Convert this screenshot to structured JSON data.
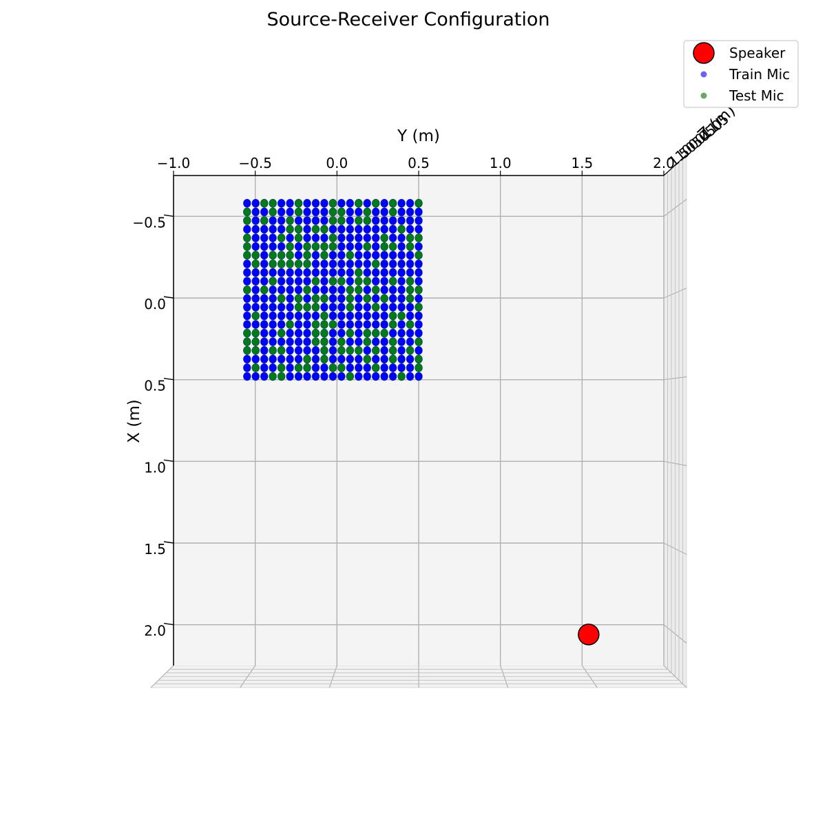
{
  "chart_data": {
    "type": "scatter",
    "title": "Source-Receiver Configuration",
    "view": "top-down 3D projection",
    "x_axis": {
      "label": "Y (m)",
      "ticks": [
        -1.0,
        -0.5,
        0.0,
        0.5,
        1.0,
        1.5,
        2.0
      ],
      "tick_labels": [
        "−1.0",
        "−0.5",
        "0.0",
        "0.5",
        "1.0",
        "1.5",
        "2.0"
      ],
      "range": [
        -1.0,
        2.0
      ],
      "position": "top"
    },
    "y_axis": {
      "label": "X (m)",
      "ticks": [
        -0.5,
        0.0,
        0.5,
        1.0,
        1.5,
        2.0
      ],
      "tick_labels": [
        "−0.5",
        "0.0",
        "0.5",
        "1.0",
        "1.5",
        "2.0"
      ],
      "range": [
        -0.75,
        2.25
      ],
      "inverted": true
    },
    "z_axis": {
      "label": "Z (m)",
      "tick_labels": [
        "1.5",
        "1.0",
        "0.5",
        "0.0",
        "0.5",
        "1.0",
        "1.5"
      ],
      "note": "tick labels overlap in top-right corner due to edge-on view"
    },
    "grid": true,
    "legend": {
      "placement": "top-right",
      "entries": [
        {
          "label": "Speaker",
          "color": "#ff0000",
          "marker": "large circle"
        },
        {
          "label": "Train Mic",
          "color": "#6666ee",
          "marker": "dot"
        },
        {
          "label": "Test Mic",
          "color": "#66aa66",
          "marker": "dot"
        }
      ]
    },
    "series": [
      {
        "name": "Train Mic",
        "color": "#0000ff",
        "grid": {
          "y_start": -0.55,
          "y_end": 0.5,
          "y_count": 21,
          "x_start": -0.58,
          "x_end": 0.48,
          "x_count": 21
        }
      },
      {
        "name": "Test Mic",
        "color": "#007a1a",
        "grid": {
          "y_start": -0.55,
          "y_end": 0.5,
          "y_count": 21,
          "x_start": -0.58,
          "x_end": 0.48,
          "x_count": 21
        }
      },
      {
        "name": "Speaker",
        "color": "#ff0000",
        "points": [
          {
            "y": 1.54,
            "x": 2.06
          }
        ]
      }
    ]
  }
}
